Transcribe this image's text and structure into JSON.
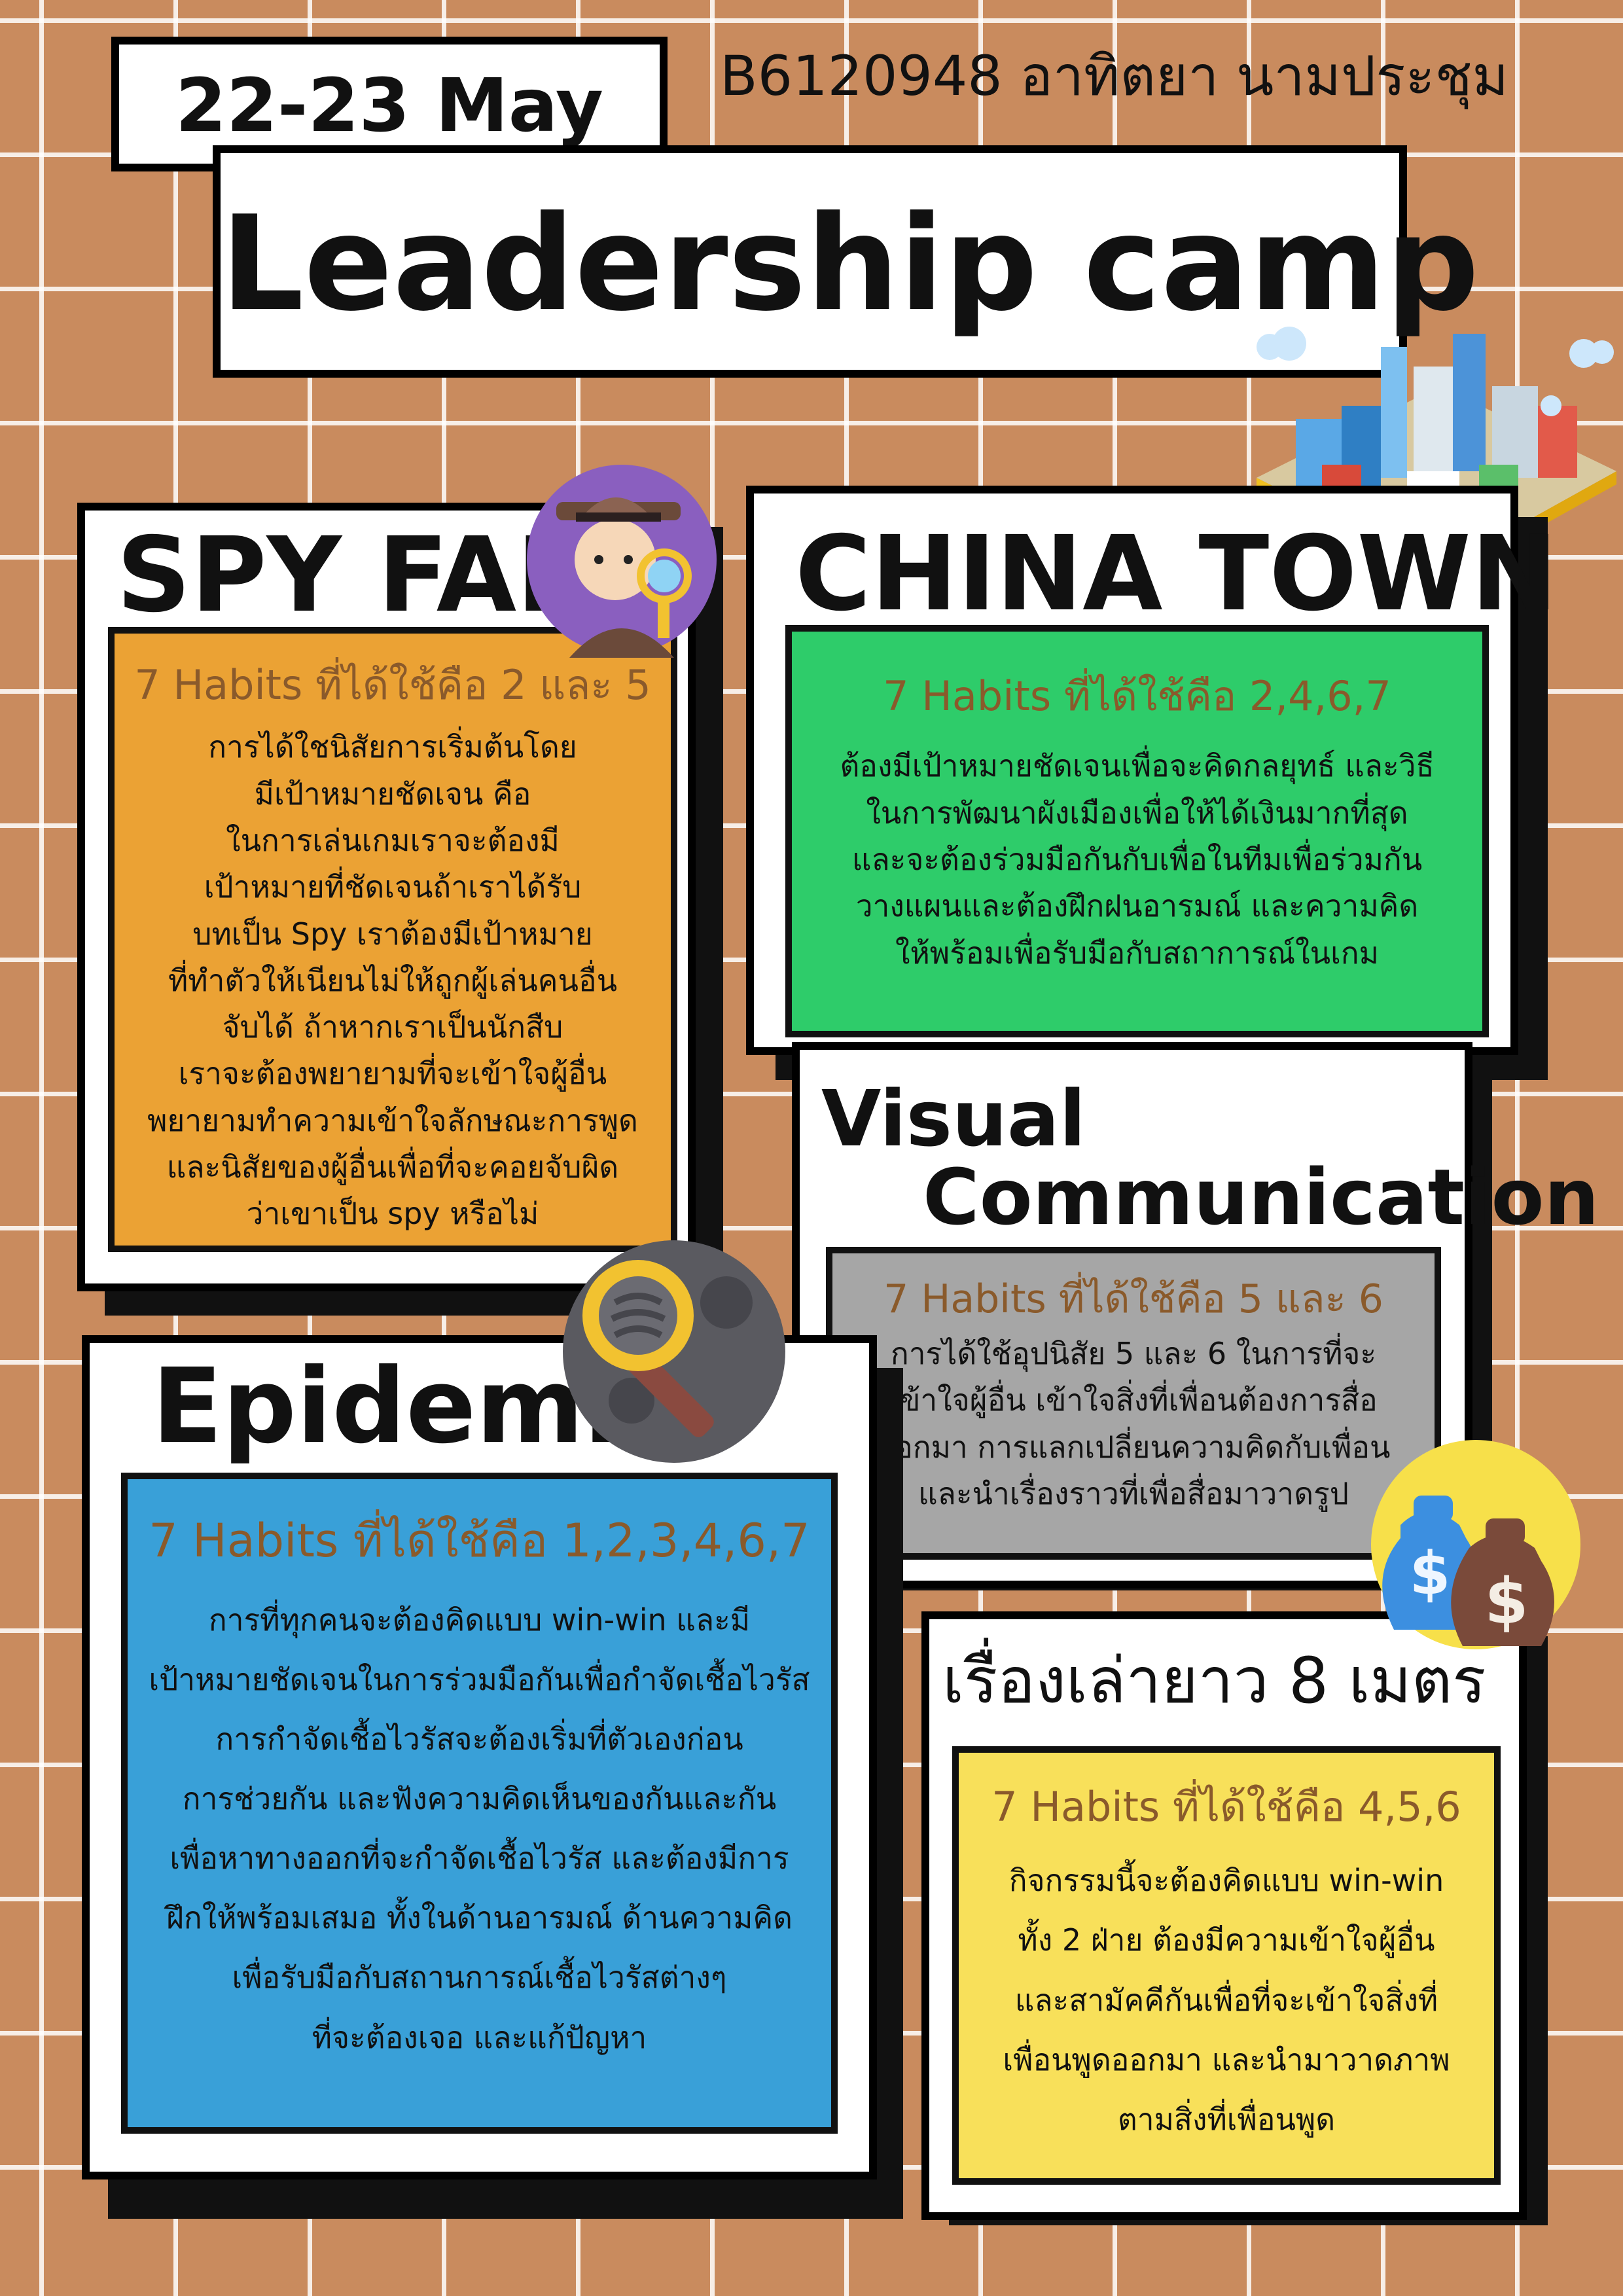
{
  "date": "22-23 May",
  "student": "B6120948 อาทิตยา นามประชุม",
  "title": "Leadership camp",
  "sections": {
    "spyfall": {
      "heading": "SPY FALL",
      "habits": "7 Habits ที่ได้ใช้คือ 2 และ 5",
      "lines": [
        "การได้ใชนิสัยการเริ่มต้นโดย",
        "มีเป้าหมายชัดเจน คือ",
        "ในการเล่นเกมเราจะต้องมี",
        "เป้าหมายที่ชัดเจนถ้าเราได้รับ",
        "บทเป็น Spy เราต้องมีเป้าหมาย",
        "ที่ทำตัวให้เนียนไม่ให้ถูกผู้เล่นคนอื่น",
        "จับได้ ถ้าหากเราเป็นนักสืบ",
        "เราจะต้องพยายามที่จะเข้าใจผู้อื่น",
        "พยายามทำความเข้าใจลักษณะการพูด",
        "และนิสัยของผู้อื่นเพื่อที่จะคอยจับผิด",
        "ว่าเขาเป็น spy หรือไม่"
      ],
      "color": "#eba234"
    },
    "chinatown": {
      "heading": "CHINA TOWN",
      "habits": "7 Habits ที่ได้ใช้คือ 2,4,6,7",
      "lines": [
        "ต้องมีเป้าหมายชัดเจนเพื่อจะคิดกลยุทธ์ และวิธี",
        "ในการพัฒนาผังเมืองเพื่อให้ได้เงินมากที่สุด",
        "และจะต้องร่วมมือกันกับเพื่อในทีมเพื่อร่วมกัน",
        "วางแผนและต้องฝึกฝนอารมณ์ และความคิด",
        "ให้พร้อมเพื่อรับมือกับสถาการณ์ในเกม"
      ],
      "color": "#2ecc6a"
    },
    "visual": {
      "heading1": "Visual",
      "heading2": "Communication",
      "habits": "7 Habits ที่ได้ใช้คือ 5 และ 6",
      "lines": [
        "การได้ใช้อุปนิสัย 5 และ 6 ในการที่จะ",
        "เข้าใจผู้อื่น เข้าใจสิ่งที่เพื่อนต้องการสื่อ",
        "ออกมา การแลกเปลี่ยนความคิดกับเพื่อน",
        "และนำเรื่องราวที่เพื่อสื่อมาวาดรูป"
      ],
      "color": "#a6a6a6"
    },
    "epidemic": {
      "heading": "Epidemic",
      "habits": "7 Habits ที่ได้ใช้คือ 1,2,3,4,6,7",
      "lines": [
        "การที่ทุกคนจะต้องคิดแบบ win-win และมี",
        "เป้าหมายชัดเจนในการร่วมมือกันเพื่อกำจัดเชื้อไวรัส",
        "การกำจัดเชื้อไวรัสจะต้องเริ่มที่ตัวเองก่อน",
        "การช่วยกัน และฟังความคิดเห็นของกันและกัน",
        "เพื่อหาทางออกที่จะกำจัดเชื้อไวรัส และต้องมีการ",
        "ฝึกให้พร้อมเสมอ ทั้งในด้านอารมณ์ ด้านความคิด",
        "เพื่อรับมือกับสถานการณ์เชื้อไวรัสต่างๆ",
        "ที่จะต้องเจอ และแก้ปัญหา"
      ],
      "color": "#39a0d8"
    },
    "story": {
      "heading": "เรื่องเล่ายาว 8 เมตร",
      "habits": "7 Habits ที่ได้ใช้คือ 4,5,6",
      "lines": [
        "กิจกรรมนี้จะต้องคิดแบบ win-win",
        "ทั้ง 2 ฝ่าย ต้องมีความเข้าใจผู้อื่น",
        "และสามัคคีกันเพื่อที่จะเข้าใจสิ่งที่",
        "เพื่อนพูดออกมา และนำมาวาดภาพ",
        "ตามสิ่งที่เพื่อนพูด"
      ],
      "color": "#f8e05a"
    }
  },
  "colors": {
    "background": "#c98b5e",
    "habit_text": "#8a5a2b"
  },
  "icons": [
    "detective-icon",
    "city-icon",
    "magnifier-icon",
    "money-bags-icon"
  ]
}
